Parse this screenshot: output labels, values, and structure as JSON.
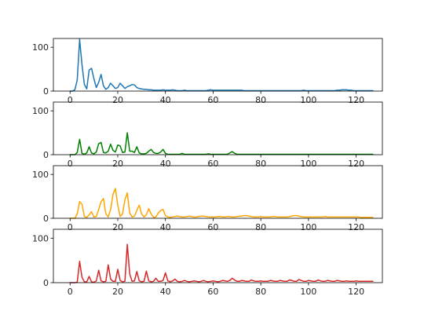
{
  "chart_data": [
    {
      "type": "line",
      "color": "#1f77b4",
      "xlim": [
        -7,
        131
      ],
      "ylim": [
        0,
        120
      ],
      "xticks": [
        0,
        20,
        40,
        60,
        80,
        100,
        120
      ],
      "xtick_labels": [
        "0",
        "20",
        "40",
        "60",
        "80",
        "100",
        "120"
      ],
      "yticks": [
        0,
        100
      ],
      "ytick_labels": [
        "0",
        "100"
      ],
      "x": [
        0,
        1,
        2,
        3,
        4,
        5,
        6,
        7,
        8,
        9,
        10,
        11,
        12,
        13,
        14,
        15,
        16,
        17,
        18,
        19,
        20,
        21,
        22,
        23,
        24,
        25,
        26,
        27,
        28,
        29,
        30,
        31,
        32,
        33,
        34,
        35,
        36,
        37,
        38,
        39,
        40,
        41,
        42,
        43,
        44,
        45,
        46,
        47,
        48,
        49,
        50,
        51,
        52,
        53,
        54,
        55,
        56,
        57,
        58,
        59,
        60,
        61,
        62,
        63,
        64,
        65,
        66,
        67,
        68,
        69,
        70,
        71,
        72,
        73,
        74,
        75,
        76,
        77,
        78,
        79,
        80,
        81,
        82,
        83,
        84,
        85,
        86,
        87,
        88,
        89,
        90,
        91,
        92,
        93,
        94,
        95,
        96,
        97,
        98,
        99,
        100,
        101,
        102,
        103,
        104,
        105,
        106,
        107,
        108,
        109,
        110,
        111,
        112,
        113,
        114,
        115,
        116,
        117,
        118,
        119,
        120,
        121,
        122,
        123,
        124,
        125,
        126,
        127
      ],
      "y": [
        0,
        0,
        3,
        25,
        118,
        60,
        15,
        5,
        48,
        52,
        28,
        8,
        20,
        38,
        12,
        4,
        8,
        18,
        12,
        6,
        8,
        18,
        12,
        6,
        10,
        12,
        15,
        14,
        8,
        6,
        5,
        4,
        4,
        3,
        3,
        2,
        2,
        2,
        2,
        3,
        2,
        2,
        2,
        3,
        2,
        1,
        1,
        1,
        2,
        1,
        1,
        1,
        1,
        1,
        1,
        1,
        1,
        1,
        2,
        3,
        2,
        2,
        2,
        2,
        2,
        2,
        2,
        2,
        2,
        2,
        2,
        2,
        2,
        1,
        1,
        1,
        1,
        1,
        1,
        1,
        1,
        1,
        1,
        1,
        1,
        1,
        1,
        1,
        1,
        1,
        1,
        1,
        1,
        1,
        1,
        1,
        1,
        1,
        2,
        1,
        1,
        1,
        1,
        1,
        1,
        1,
        1,
        1,
        1,
        1,
        1,
        1,
        2,
        2,
        3,
        3,
        3,
        2,
        2,
        1,
        1,
        1,
        1,
        1,
        1,
        1,
        1,
        1
      ]
    },
    {
      "type": "line",
      "color": "#008000",
      "xlim": [
        -7,
        131
      ],
      "ylim": [
        0,
        120
      ],
      "xticks": [
        0,
        20,
        40,
        60,
        80,
        100,
        120
      ],
      "xtick_labels": [
        "0",
        "20",
        "40",
        "60",
        "80",
        "100",
        "120"
      ],
      "yticks": [
        0,
        100
      ],
      "ytick_labels": [
        "0",
        "100"
      ],
      "x": [
        0,
        1,
        2,
        3,
        4,
        5,
        6,
        7,
        8,
        9,
        10,
        11,
        12,
        13,
        14,
        15,
        16,
        17,
        18,
        19,
        20,
        21,
        22,
        23,
        24,
        25,
        26,
        27,
        28,
        29,
        30,
        31,
        32,
        33,
        34,
        35,
        36,
        37,
        38,
        39,
        40,
        41,
        42,
        43,
        44,
        45,
        46,
        47,
        48,
        49,
        50,
        51,
        52,
        53,
        54,
        55,
        56,
        57,
        58,
        59,
        60,
        61,
        62,
        63,
        64,
        65,
        66,
        67,
        68,
        69,
        70,
        71,
        72,
        73,
        74,
        75,
        76,
        77,
        78,
        79,
        80,
        81,
        82,
        83,
        84,
        85,
        86,
        87,
        88,
        89,
        90,
        91,
        92,
        93,
        94,
        95,
        96,
        97,
        98,
        99,
        100,
        101,
        102,
        103,
        104,
        105,
        106,
        107,
        108,
        109,
        110,
        111,
        112,
        113,
        114,
        115,
        116,
        117,
        118,
        119,
        120,
        121,
        122,
        123,
        124,
        125,
        126,
        127
      ],
      "y": [
        0,
        0,
        0,
        5,
        35,
        3,
        1,
        4,
        18,
        4,
        2,
        6,
        25,
        28,
        5,
        4,
        8,
        24,
        10,
        6,
        22,
        20,
        5,
        6,
        50,
        8,
        8,
        5,
        18,
        4,
        2,
        2,
        3,
        8,
        12,
        5,
        3,
        3,
        6,
        12,
        3,
        1,
        1,
        1,
        1,
        1,
        1,
        3,
        1,
        1,
        1,
        1,
        1,
        1,
        1,
        1,
        1,
        1,
        2,
        1,
        1,
        1,
        1,
        1,
        1,
        1,
        1,
        4,
        7,
        3,
        1,
        1,
        1,
        1,
        1,
        1,
        1,
        1,
        1,
        1,
        1,
        1,
        1,
        1,
        1,
        1,
        1,
        1,
        1,
        1,
        1,
        1,
        1,
        1,
        1,
        1,
        1,
        1,
        1,
        1,
        1,
        1,
        1,
        1,
        1,
        1,
        1,
        1,
        1,
        1,
        1,
        1,
        1,
        1,
        1,
        1,
        1,
        1,
        1,
        1,
        1,
        1,
        1,
        1,
        1,
        1,
        1,
        1
      ]
    },
    {
      "type": "line",
      "color": "#ffa500",
      "xlim": [
        -7,
        131
      ],
      "ylim": [
        0,
        120
      ],
      "xticks": [
        0,
        20,
        40,
        60,
        80,
        100,
        120
      ],
      "xtick_labels": [
        "0",
        "20",
        "40",
        "60",
        "80",
        "100",
        "120"
      ],
      "yticks": [
        0,
        100
      ],
      "ytick_labels": [
        "0",
        "100"
      ],
      "x": [
        0,
        1,
        2,
        3,
        4,
        5,
        6,
        7,
        8,
        9,
        10,
        11,
        12,
        13,
        14,
        15,
        16,
        17,
        18,
        19,
        20,
        21,
        22,
        23,
        24,
        25,
        26,
        27,
        28,
        29,
        30,
        31,
        32,
        33,
        34,
        35,
        36,
        37,
        38,
        39,
        40,
        41,
        42,
        43,
        44,
        45,
        46,
        47,
        48,
        49,
        50,
        51,
        52,
        53,
        54,
        55,
        56,
        57,
        58,
        59,
        60,
        61,
        62,
        63,
        64,
        65,
        66,
        67,
        68,
        69,
        70,
        71,
        72,
        73,
        74,
        75,
        76,
        77,
        78,
        79,
        80,
        81,
        82,
        83,
        84,
        85,
        86,
        87,
        88,
        89,
        90,
        91,
        92,
        93,
        94,
        95,
        96,
        97,
        98,
        99,
        100,
        101,
        102,
        103,
        104,
        105,
        106,
        107,
        108,
        109,
        110,
        111,
        112,
        113,
        114,
        115,
        116,
        117,
        118,
        119,
        120,
        121,
        122,
        123,
        124,
        125,
        126,
        127
      ],
      "y": [
        0,
        0,
        0,
        10,
        38,
        32,
        4,
        2,
        8,
        15,
        3,
        4,
        20,
        38,
        45,
        10,
        3,
        20,
        55,
        68,
        30,
        4,
        10,
        42,
        58,
        12,
        3,
        5,
        18,
        30,
        10,
        3,
        8,
        22,
        10,
        2,
        3,
        12,
        18,
        20,
        6,
        3,
        2,
        3,
        4,
        5,
        4,
        3,
        3,
        4,
        5,
        4,
        3,
        3,
        4,
        5,
        5,
        4,
        3,
        3,
        3,
        3,
        4,
        4,
        3,
        3,
        4,
        4,
        3,
        3,
        4,
        5,
        5,
        6,
        6,
        5,
        4,
        3,
        3,
        3,
        4,
        3,
        3,
        3,
        3,
        4,
        4,
        3,
        3,
        3,
        3,
        3,
        4,
        5,
        6,
        6,
        5,
        4,
        3,
        3,
        3,
        3,
        3,
        3,
        3,
        3,
        3,
        4,
        3,
        3,
        3,
        3,
        3,
        3,
        3,
        3,
        3,
        3,
        3,
        3,
        3,
        3,
        2,
        2,
        2,
        2,
        2,
        2
      ]
    },
    {
      "type": "line",
      "color": "#d62728",
      "xlim": [
        -7,
        131
      ],
      "ylim": [
        0,
        120
      ],
      "xticks": [
        0,
        20,
        40,
        60,
        80,
        100,
        120
      ],
      "xtick_labels": [
        "0",
        "20",
        "40",
        "60",
        "80",
        "100",
        "120"
      ],
      "yticks": [
        0,
        100
      ],
      "ytick_labels": [
        "0",
        "100"
      ],
      "x": [
        0,
        1,
        2,
        3,
        4,
        5,
        6,
        7,
        8,
        9,
        10,
        11,
        12,
        13,
        14,
        15,
        16,
        17,
        18,
        19,
        20,
        21,
        22,
        23,
        24,
        25,
        26,
        27,
        28,
        29,
        30,
        31,
        32,
        33,
        34,
        35,
        36,
        37,
        38,
        39,
        40,
        41,
        42,
        43,
        44,
        45,
        46,
        47,
        48,
        49,
        50,
        51,
        52,
        53,
        54,
        55,
        56,
        57,
        58,
        59,
        60,
        61,
        62,
        63,
        64,
        65,
        66,
        67,
        68,
        69,
        70,
        71,
        72,
        73,
        74,
        75,
        76,
        77,
        78,
        79,
        80,
        81,
        82,
        83,
        84,
        85,
        86,
        87,
        88,
        89,
        90,
        91,
        92,
        93,
        94,
        95,
        96,
        97,
        98,
        99,
        100,
        101,
        102,
        103,
        104,
        105,
        106,
        107,
        108,
        109,
        110,
        111,
        112,
        113,
        114,
        115,
        116,
        117,
        118,
        119,
        120,
        121,
        122,
        123,
        124,
        125,
        126,
        127
      ],
      "y": [
        0,
        0,
        0,
        1,
        48,
        12,
        2,
        2,
        14,
        2,
        1,
        4,
        28,
        4,
        2,
        3,
        40,
        8,
        3,
        3,
        30,
        5,
        2,
        3,
        86,
        20,
        3,
        4,
        25,
        4,
        2,
        3,
        26,
        4,
        2,
        3,
        10,
        3,
        3,
        5,
        22,
        4,
        2,
        4,
        8,
        3,
        2,
        3,
        5,
        3,
        2,
        3,
        4,
        3,
        2,
        3,
        5,
        3,
        2,
        3,
        4,
        3,
        2,
        3,
        5,
        4,
        3,
        5,
        10,
        6,
        3,
        3,
        5,
        4,
        3,
        3,
        6,
        4,
        3,
        3,
        4,
        3,
        3,
        3,
        5,
        4,
        3,
        3,
        5,
        4,
        3,
        3,
        6,
        5,
        3,
        3,
        7,
        5,
        3,
        3,
        5,
        4,
        3,
        3,
        6,
        4,
        3,
        3,
        5,
        4,
        3,
        3,
        5,
        4,
        3,
        3,
        4,
        3,
        3,
        3,
        4,
        3,
        3,
        3,
        3,
        3,
        3,
        3
      ]
    }
  ]
}
